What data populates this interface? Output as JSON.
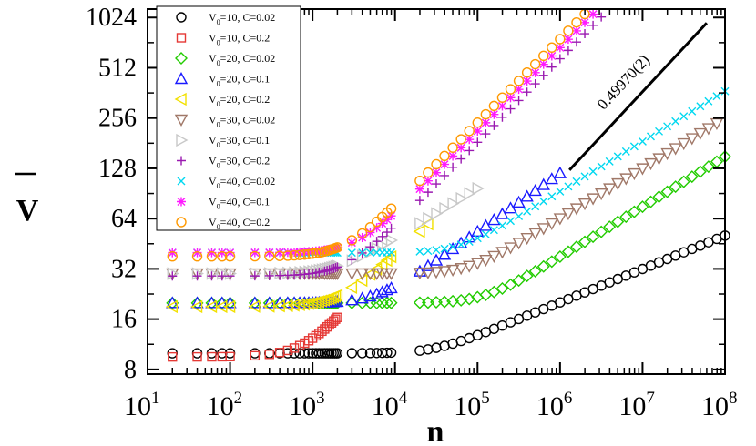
{
  "chart_data": {
    "type": "scatter",
    "xscale": "log10",
    "yscale": "log2",
    "xlim": [
      10,
      100000000
    ],
    "ylim": [
      7.5,
      1150
    ],
    "xlabel": "n",
    "ylabel": "V",
    "ylabel_bar": true,
    "yticks": [
      8,
      16,
      32,
      64,
      128,
      256,
      512,
      1024
    ],
    "yticklabels": [
      "8",
      "16",
      "32",
      "64",
      "128",
      "256",
      "512",
      "1024"
    ],
    "xticks": [
      {
        "value": 10,
        "base": "10",
        "exp": "1"
      },
      {
        "value": 100,
        "base": "10",
        "exp": "2"
      },
      {
        "value": 1000,
        "base": "10",
        "exp": "3"
      },
      {
        "value": 10000,
        "base": "10",
        "exp": "4"
      },
      {
        "value": 100000,
        "base": "10",
        "exp": "5"
      },
      {
        "value": 1000000,
        "base": "10",
        "exp": "6"
      },
      {
        "value": 10000000,
        "base": "10",
        "exp": "7"
      },
      {
        "value": 100000000,
        "base": "10",
        "exp": "8"
      }
    ],
    "annotation": {
      "text": "0.49970(2)",
      "line_start": [
        1300000,
        125
      ],
      "line_end": [
        60000000,
        950
      ]
    },
    "legend_position": "top-left",
    "series": [
      {
        "name_pre": "V",
        "name_sub": "0",
        "name_post": "=10, C=0.02",
        "marker": "circle",
        "color": "#000000",
        "plateau": 10,
        "onset": 30000,
        "exponent": 0.2,
        "endpoints": [
          20,
          100000000
        ]
      },
      {
        "name_pre": "V",
        "name_sub": "0",
        "name_post": "=10, C=0.2",
        "marker": "square",
        "color": "#e53935",
        "plateau": 9.5,
        "onset": 800,
        "exponent": 0.55,
        "endpoints": [
          20,
          2000
        ]
      },
      {
        "name_pre": "V",
        "name_sub": "0",
        "name_post": "=20, C=0.02",
        "marker": "diamond",
        "color": "#22cc00",
        "plateau": 20,
        "onset": 120000,
        "exponent": 0.3,
        "endpoints": [
          20,
          100000000
        ]
      },
      {
        "name_pre": "V",
        "name_sub": "0",
        "name_post": "=20, C=0.1",
        "marker": "triangle-up",
        "color": "#1a1aff",
        "plateau": 20,
        "onset": 6000,
        "exponent": 0.35,
        "endpoints": [
          20,
          1000000
        ]
      },
      {
        "name_pre": "V",
        "name_sub": "0",
        "name_post": "=20, C=0.2",
        "marker": "triangle-left",
        "color": "#f2e000",
        "plateau": 19,
        "onset": 2000,
        "exponent": 0.45,
        "endpoints": [
          20,
          30000
        ]
      },
      {
        "name_pre": "V",
        "name_sub": "0",
        "name_post": "=30, C=0.02",
        "marker": "triangle-down",
        "color": "#a07868",
        "plateau": 30,
        "onset": 80000,
        "exponent": 0.3,
        "endpoints": [
          20,
          80000000
        ]
      },
      {
        "name_pre": "V",
        "name_sub": "0",
        "name_post": "=30, C=0.1",
        "marker": "triangle-right",
        "color": "#c8c8c8",
        "plateau": 30,
        "onset": 2000,
        "exponent": 0.3,
        "endpoints": [
          20,
          100000
        ]
      },
      {
        "name_pre": "V",
        "name_sub": "0",
        "name_post": "=30, C=0.2",
        "marker": "plus",
        "color": "#9a1ab0",
        "plateau": 29,
        "onset": 2500,
        "exponent": 0.5,
        "endpoints": [
          20,
          100000000
        ]
      },
      {
        "name_pre": "V",
        "name_sub": "0",
        "name_post": "=40, C=0.02",
        "marker": "x",
        "color": "#00d8f0",
        "plateau": 40,
        "onset": 60000,
        "exponent": 0.3,
        "endpoints": [
          20,
          100000000
        ]
      },
      {
        "name_pre": "V",
        "name_sub": "0",
        "name_post": "=40, C=0.1",
        "marker": "star",
        "color": "#ff1aff",
        "plateau": 40,
        "onset": 3500,
        "exponent": 0.5,
        "endpoints": [
          20,
          100000000
        ]
      },
      {
        "name_pre": "V",
        "name_sub": "0",
        "name_post": "=40, C=0.2",
        "marker": "circle",
        "color": "#ff9900",
        "plateau": 38,
        "onset": 2500,
        "exponent": 0.5,
        "endpoints": [
          20,
          100000000
        ]
      }
    ]
  }
}
